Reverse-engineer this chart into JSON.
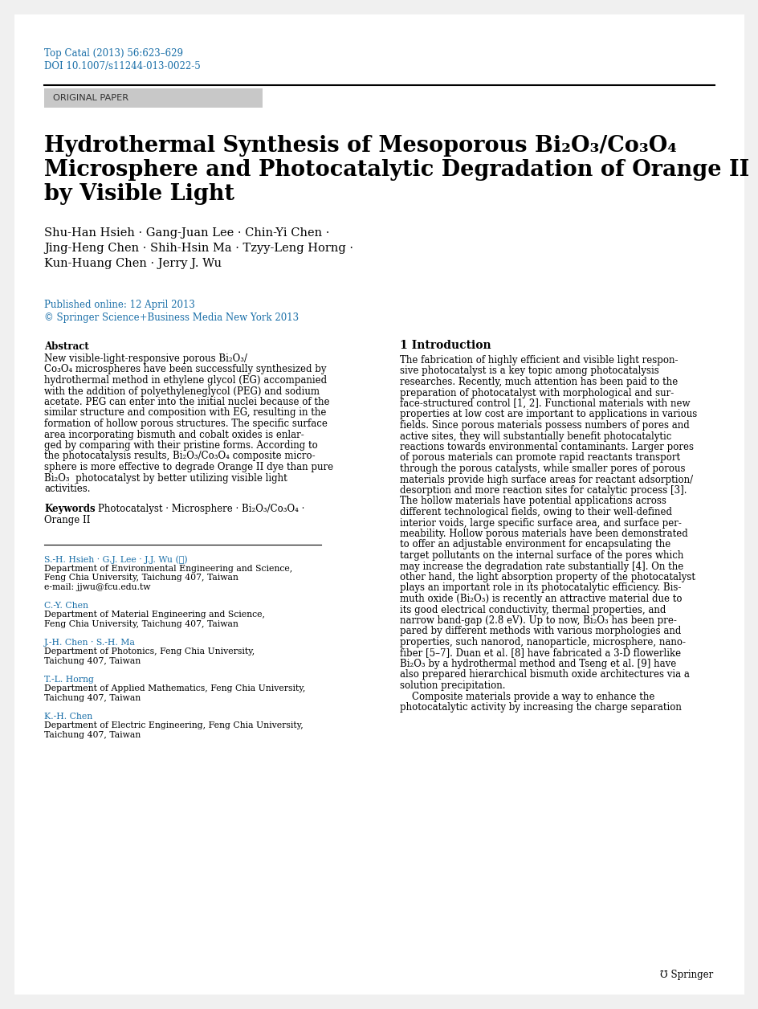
{
  "bg_color": "#f0f0f0",
  "page_bg": "#ffffff",
  "springer_blue": "#1a6fa8",
  "header_citation": "Top Catal (2013) 56:623–629",
  "header_doi": "DOI 10.1007/s11244-013-0022-5",
  "original_paper_label": "ORIGINAL PAPER",
  "title_line1": "Hydrothermal Synthesis of Mesoporous Bi₂O₃/Co₃O₄",
  "title_line2": "Microsphere and Photocatalytic Degradation of Orange II Dyes",
  "title_line3": "by Visible Light",
  "authors_line1": "Shu-Han Hsieh · Gang-Juan Lee · Chin-Yi Chen ·",
  "authors_line2": "Jing-Heng Chen · Shih-Hsin Ma · Tzyy-Leng Horng ·",
  "authors_line3": "Kun-Huang Chen · Jerry J. Wu",
  "published_line1": "Published online: 12 April 2013",
  "published_line2": "© Springer Science+Business Media New York 2013",
  "abstract_lines": [
    "New visible-light-responsive porous Bi₂O₃/",
    "Co₃O₄ microspheres have been successfully synthesized by",
    "hydrothermal method in ethylene glycol (EG) accompanied",
    "with the addition of polyethyleneglycol (PEG) and sodium",
    "acetate. PEG can enter into the initial nuclei because of the",
    "similar structure and composition with EG, resulting in the",
    "formation of hollow porous structures. The specific surface",
    "area incorporating bismuth and cobalt oxides is enlar-",
    "ged by comparing with their pristine forms. According to",
    "the photocatalysis results, Bi₂O₃/Co₃O₄ composite micro-",
    "sphere is more effective to degrade Orange II dye than pure",
    "Bi₂O₃  photocatalyst by better utilizing visible light",
    "activities."
  ],
  "keywords_line1": "Photocatalyst · Microsphere · Bi₂O₃/Co₃O₄ ·",
  "keywords_line2": "Orange II",
  "footnote1_authors": "S.-H. Hsieh · G.J. Lee · J.J. Wu (✉)",
  "footnote1_dept": "Department of Environmental Engineering and Science,",
  "footnote1_univ": "Feng Chia University, Taichung 407, Taiwan",
  "footnote1_email": "e-mail: jjwu@fcu.edu.tw",
  "footnote2_author": "C.-Y. Chen",
  "footnote2_dept": "Department of Material Engineering and Science,",
  "footnote2_univ": "Feng Chia University, Taichung 407, Taiwan",
  "footnote3_author": "J.-H. Chen · S.-H. Ma",
  "footnote3_dept": "Department of Photonics, Feng Chia University,",
  "footnote3_univ": "Taichung 407, Taiwan",
  "footnote4_author": "T.-L. Horng",
  "footnote4_dept": "Department of Applied Mathematics, Feng Chia University,",
  "footnote4_univ": "Taichung 407, Taiwan",
  "footnote5_author": "K.-H. Chen",
  "footnote5_dept": "Department of Electric Engineering, Feng Chia University,",
  "footnote5_univ": "Taichung 407, Taiwan",
  "intro_heading": "1 Introduction",
  "intro_lines": [
    "The fabrication of highly efficient and visible light respon-",
    "sive photocatalyst is a key topic among photocatalysis",
    "researches. Recently, much attention has been paid to the",
    "preparation of photocatalyst with morphological and sur-",
    "face-structured control [1, 2]. Functional materials with new",
    "properties at low cost are important to applications in various",
    "fields. Since porous materials possess numbers of pores and",
    "active sites, they will substantially benefit photocatalytic",
    "reactions towards environmental contaminants. Larger pores",
    "of porous materials can promote rapid reactants transport",
    "through the porous catalysts, while smaller pores of porous",
    "materials provide high surface areas for reactant adsorption/",
    "desorption and more reaction sites for catalytic process [3].",
    "The hollow materials have potential applications across",
    "different technological fields, owing to their well-defined",
    "interior voids, large specific surface area, and surface per-",
    "meability. Hollow porous materials have been demonstrated",
    "to offer an adjustable environment for encapsulating the",
    "target pollutants on the internal surface of the pores which",
    "may increase the degradation rate substantially [4]. On the",
    "other hand, the light absorption property of the photocatalyst",
    "plays an important role in its photocatalytic efficiency. Bis-",
    "muth oxide (Bi₂O₃) is recently an attractive material due to",
    "its good electrical conductivity, thermal properties, and",
    "narrow band-gap (2.8 eV). Up to now, Bi₂O₃ has been pre-",
    "pared by different methods with various morphologies and",
    "properties, such nanorod, nanoparticle, microsphere, nano-",
    "fiber [5–7]. Duan et al. [8] have fabricated a 3-D flowerlike",
    "Bi₂O₃ by a hydrothermal method and Tseng et al. [9] have",
    "also prepared hierarchical bismuth oxide architectures via a",
    "solution precipitation.",
    "    Composite materials provide a way to enhance the",
    "photocatalytic activity by increasing the charge separation"
  ],
  "springer_footer": "℧ Springer"
}
